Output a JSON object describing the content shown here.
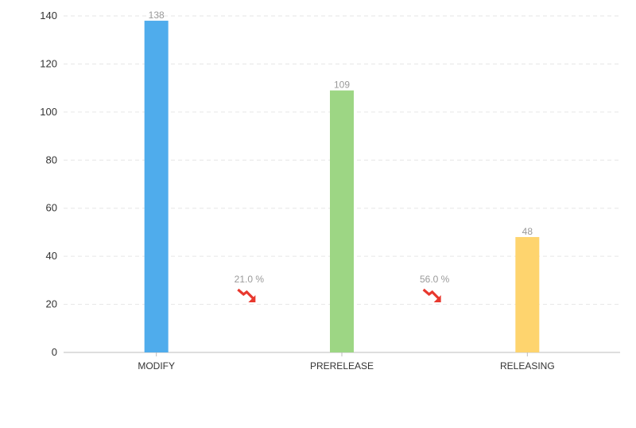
{
  "chart_data": {
    "type": "bar",
    "categories": [
      "MODIFY",
      "PRERELEASE",
      "RELEASING"
    ],
    "values": [
      138,
      109,
      48
    ],
    "colors": [
      "#4FACEC",
      "#9DD684",
      "#FED46E"
    ],
    "data_labels": [
      "138",
      "109",
      "48"
    ],
    "ylim": [
      0,
      140
    ],
    "yticks": [
      0,
      20,
      40,
      60,
      80,
      100,
      120,
      140
    ],
    "ytick_labels": [
      "0",
      "20",
      "40",
      "60",
      "80",
      "100",
      "120",
      "140"
    ],
    "grid": true,
    "legend": "none",
    "annotations": [
      {
        "between": [
          "MODIFY",
          "PRERELEASE"
        ],
        "text": "21.0 %",
        "icon": "trend-down-icon",
        "color": "#E8382E"
      },
      {
        "between": [
          "PRERELEASE",
          "RELEASING"
        ],
        "text": "56.0 %",
        "icon": "trend-down-icon",
        "color": "#E8382E"
      }
    ]
  }
}
